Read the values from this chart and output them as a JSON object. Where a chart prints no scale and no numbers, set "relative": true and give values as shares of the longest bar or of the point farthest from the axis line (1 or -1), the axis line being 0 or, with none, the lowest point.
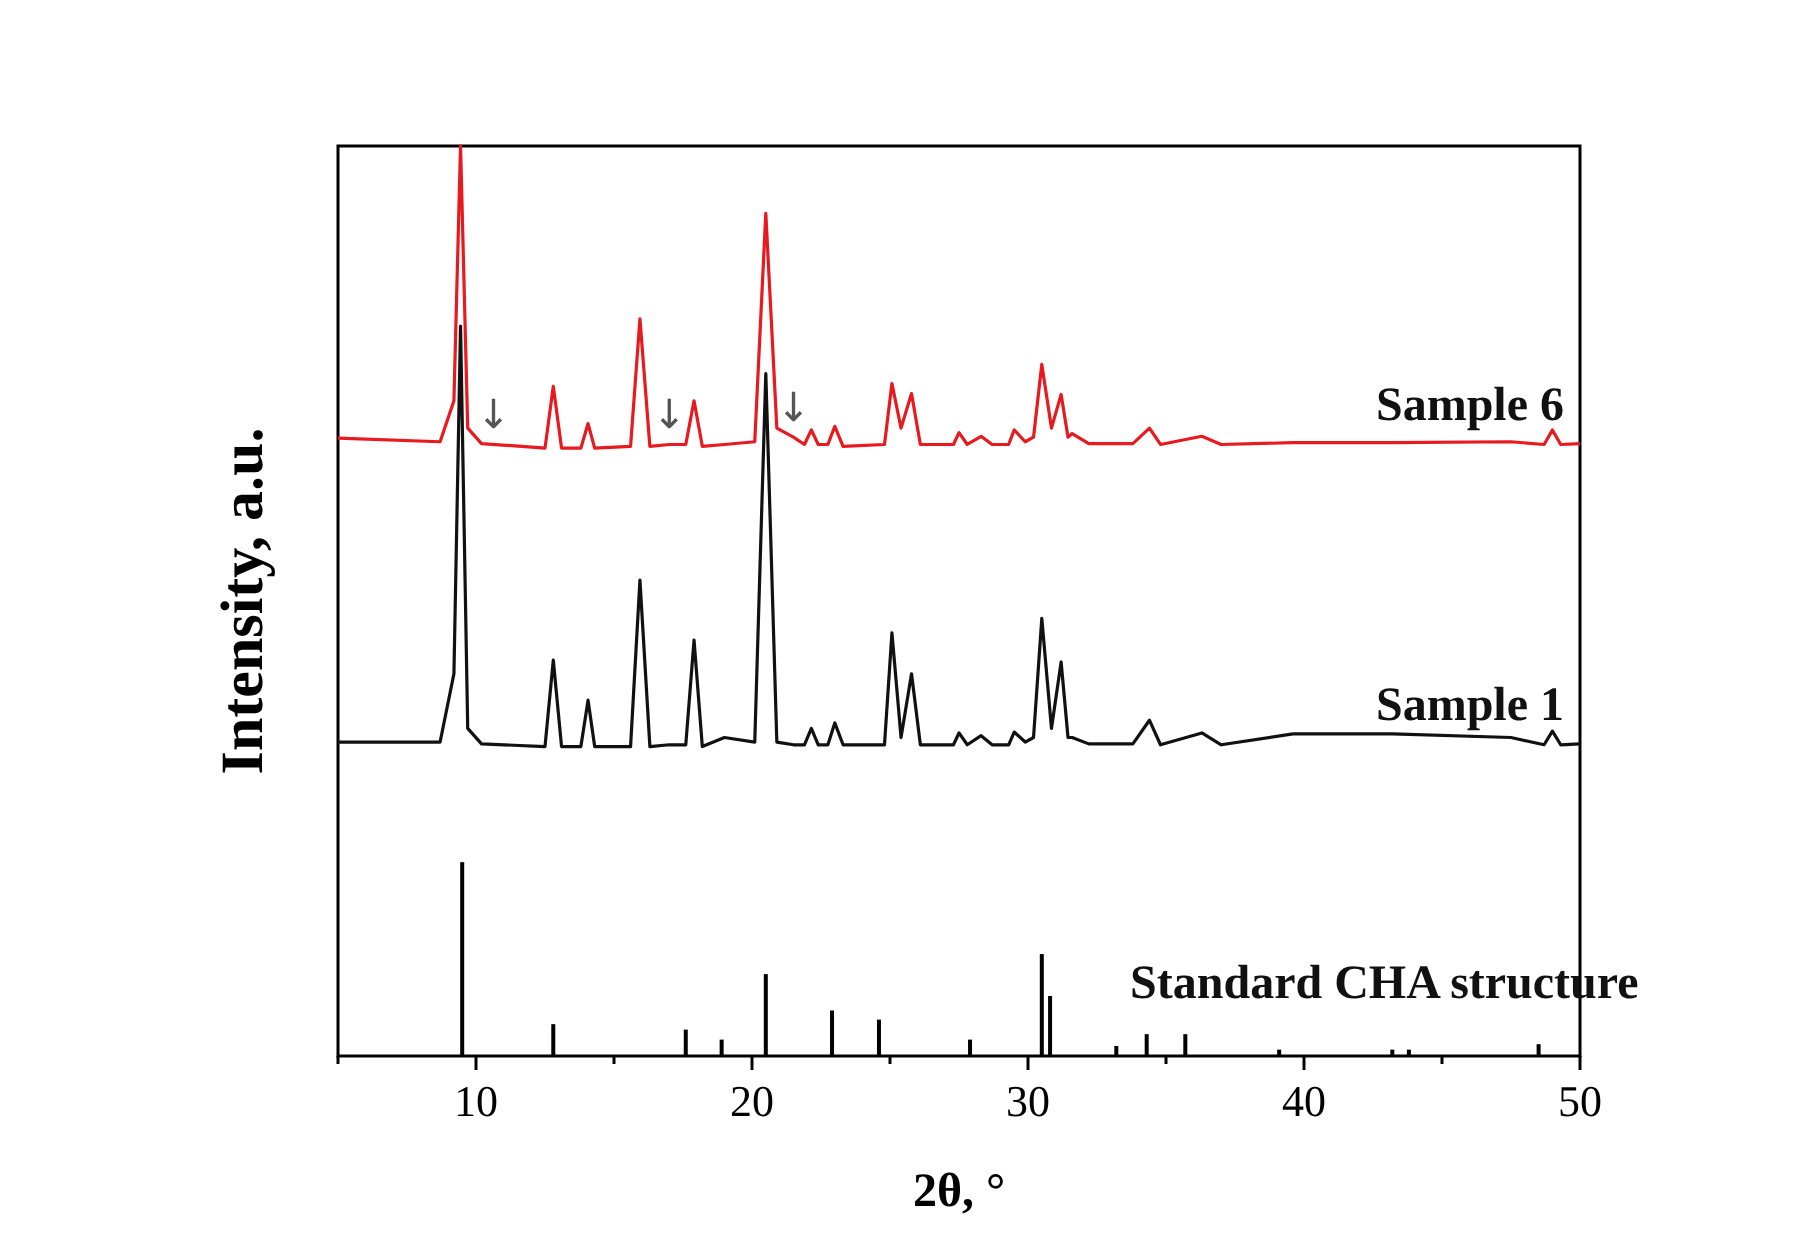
{
  "chart_data": {
    "type": "line",
    "xlabel": "2θ, °",
    "ylabel": "Intensity, a.u.",
    "relative": true,
    "xlim": [
      5,
      50
    ],
    "xticks": [
      {
        "value": 5,
        "label": null
      },
      10,
      {
        "value": 15,
        "label": null
      },
      20,
      {
        "value": 25,
        "label": null
      },
      30,
      {
        "value": 35,
        "label": null
      },
      40,
      {
        "value": 45,
        "label": null
      },
      50
    ],
    "grid": false,
    "legend": false,
    "marker": "none",
    "line_style": "solid",
    "annotations": [
      {
        "text": "↓",
        "x": 10.2,
        "y": 0.673
      },
      {
        "text": "↓",
        "x": 17.0,
        "y": 0.672
      },
      {
        "text": "↓",
        "x": 21.5,
        "y": 0.68
      }
    ],
    "series": [
      {
        "name": "Sample 6",
        "color": "#e8191f",
        "x": [
          5,
          8.7,
          9.2,
          9.44,
          9.7,
          10.2,
          12.5,
          12.8,
          13.1,
          13.8,
          14.06,
          14.3,
          15.6,
          15.94,
          16.3,
          17.0,
          17.6,
          17.9,
          18.2,
          19.0,
          20.1,
          20.5,
          20.9,
          21.5,
          21.9,
          22.15,
          22.4,
          22.75,
          23.0,
          23.3,
          24.8,
          25.07,
          25.4,
          25.78,
          26.1,
          27.3,
          27.5,
          27.8,
          28.3,
          28.7,
          29.3,
          29.5,
          29.9,
          30.2,
          30.5,
          30.85,
          31.2,
          31.45,
          31.6,
          32.2,
          33.8,
          34.4,
          34.8,
          36.3,
          37,
          39.6,
          43.2,
          47.5,
          48.7,
          49.0,
          49.3,
          50
        ],
        "values": [
          0.679,
          0.675,
          0.72,
          1.0,
          0.69,
          0.673,
          0.668,
          0.736,
          0.668,
          0.668,
          0.695,
          0.668,
          0.67,
          0.81,
          0.67,
          0.672,
          0.672,
          0.72,
          0.67,
          0.672,
          0.675,
          0.926,
          0.69,
          0.68,
          0.672,
          0.688,
          0.672,
          0.672,
          0.692,
          0.67,
          0.672,
          0.739,
          0.69,
          0.728,
          0.672,
          0.672,
          0.685,
          0.672,
          0.681,
          0.672,
          0.672,
          0.688,
          0.675,
          0.68,
          0.76,
          0.69,
          0.727,
          0.68,
          0.684,
          0.673,
          0.673,
          0.69,
          0.672,
          0.681,
          0.672,
          0.674,
          0.674,
          0.675,
          0.672,
          0.688,
          0.672,
          0.673
        ]
      },
      {
        "name": "Sample 1",
        "color": "#111111",
        "x": [
          5,
          8.7,
          9.2,
          9.44,
          9.7,
          10.2,
          12.5,
          12.8,
          13.1,
          13.8,
          14.06,
          14.3,
          15.6,
          15.94,
          16.3,
          17.0,
          17.6,
          17.9,
          18.2,
          19.0,
          20.1,
          20.5,
          20.9,
          21.5,
          21.9,
          22.15,
          22.4,
          22.75,
          23.0,
          23.3,
          24.8,
          25.07,
          25.4,
          25.78,
          26.1,
          27.3,
          27.5,
          27.8,
          28.3,
          28.7,
          29.3,
          29.5,
          29.9,
          30.2,
          30.5,
          30.85,
          31.2,
          31.45,
          31.6,
          32.2,
          33.8,
          34.4,
          34.8,
          36.3,
          37,
          39.6,
          43.2,
          47.5,
          48.7,
          49.0,
          49.3,
          50
        ],
        "values": [
          0.345,
          0.345,
          0.42,
          0.802,
          0.36,
          0.343,
          0.34,
          0.435,
          0.34,
          0.34,
          0.391,
          0.34,
          0.34,
          0.523,
          0.34,
          0.342,
          0.342,
          0.457,
          0.34,
          0.35,
          0.345,
          0.75,
          0.345,
          0.342,
          0.342,
          0.36,
          0.342,
          0.342,
          0.366,
          0.342,
          0.342,
          0.465,
          0.35,
          0.42,
          0.342,
          0.342,
          0.355,
          0.342,
          0.352,
          0.342,
          0.342,
          0.356,
          0.345,
          0.35,
          0.481,
          0.36,
          0.433,
          0.35,
          0.35,
          0.343,
          0.343,
          0.369,
          0.342,
          0.355,
          0.342,
          0.354,
          0.354,
          0.35,
          0.342,
          0.357,
          0.342,
          0.343
        ]
      },
      {
        "name": "Standard CHA structure",
        "type": "bar",
        "color": "#000000",
        "x": [
          9.5,
          12.8,
          17.6,
          18.9,
          20.5,
          22.9,
          24.6,
          27.9,
          30.5,
          30.8,
          33.2,
          34.3,
          35.7,
          39.1,
          43.2,
          43.8,
          48.5
        ],
        "values": [
          0.213,
          0.035,
          0.029,
          0.018,
          0.09,
          0.05,
          0.04,
          0.018,
          0.112,
          0.066,
          0.011,
          0.024,
          0.024,
          0.007,
          0.007,
          0.007,
          0.013
        ]
      }
    ]
  }
}
